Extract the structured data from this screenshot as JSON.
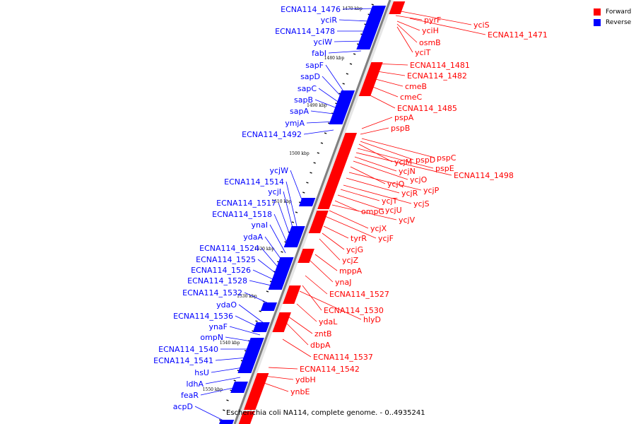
{
  "legend": {
    "forward_label": "Forward",
    "reverse_label": "Reverse",
    "forward_color": "#ff0000",
    "reverse_color": "#0000ff"
  },
  "caption": "Escherichia coli NA114, complete genome. - 0..4935241",
  "colors": {
    "forward": "#ff0000",
    "reverse": "#0000ff",
    "axis": "#808080"
  },
  "axis_ticks": [
    "1470 kbp",
    "1480 kbp",
    "1490 kbp",
    "1500 kbp",
    "1510 kbp",
    "1520 kbp",
    "1530 kbp",
    "1540 kbp",
    "1550 kbp"
  ],
  "reverse_genes": [
    "ECNA114_1476",
    "yciR",
    "ECNA114_1478",
    "yciW",
    "fabI",
    "sapF",
    "sapD",
    "sapC",
    "sapB",
    "sapA",
    "ymjA",
    "ECNA114_1492",
    "ycjW",
    "ECNA114_1514",
    "ycjI",
    "ECNA114_1517",
    "ECNA114_1518",
    "ynaI",
    "ydaA",
    "ECNA114_1524",
    "ECNA114_1525",
    "ECNA114_1526",
    "ECNA114_1528",
    "ECNA114_1532",
    "ydaO",
    "ECNA114_1536",
    "ynaF",
    "ompN",
    "ECNA114_1540",
    "ECNA114_1541",
    "hsU",
    "ldhA",
    "feaR",
    "acpD"
  ],
  "forward_genes": [
    "yciS",
    "pyrF",
    "ECNA114_1471",
    "yciH",
    "osmB",
    "yciT",
    "ECNA114_1481",
    "ECNA114_1482",
    "cmeB",
    "cmeC",
    "ECNA114_1485",
    "pspA",
    "pspB",
    "pspC",
    "pspD",
    "ycjM",
    "pspE",
    "ECNA114_1498",
    "ycjN",
    "ycjO",
    "ycjQ",
    "ycjP",
    "ycjR",
    "ycjS",
    "ycjT",
    "ycjU",
    "ompG",
    "ycjV",
    "ycjX",
    "ycjF",
    "tyrR",
    "ycjG",
    "ycjZ",
    "mppA",
    "ynaJ",
    "ECNA114_1527",
    "ECNA114_1530",
    "hlyD",
    "ydaL",
    "zntB",
    "dbpA",
    "ECNA114_1537",
    "ECNA114_1542",
    "ydbH",
    "ynbE"
  ]
}
